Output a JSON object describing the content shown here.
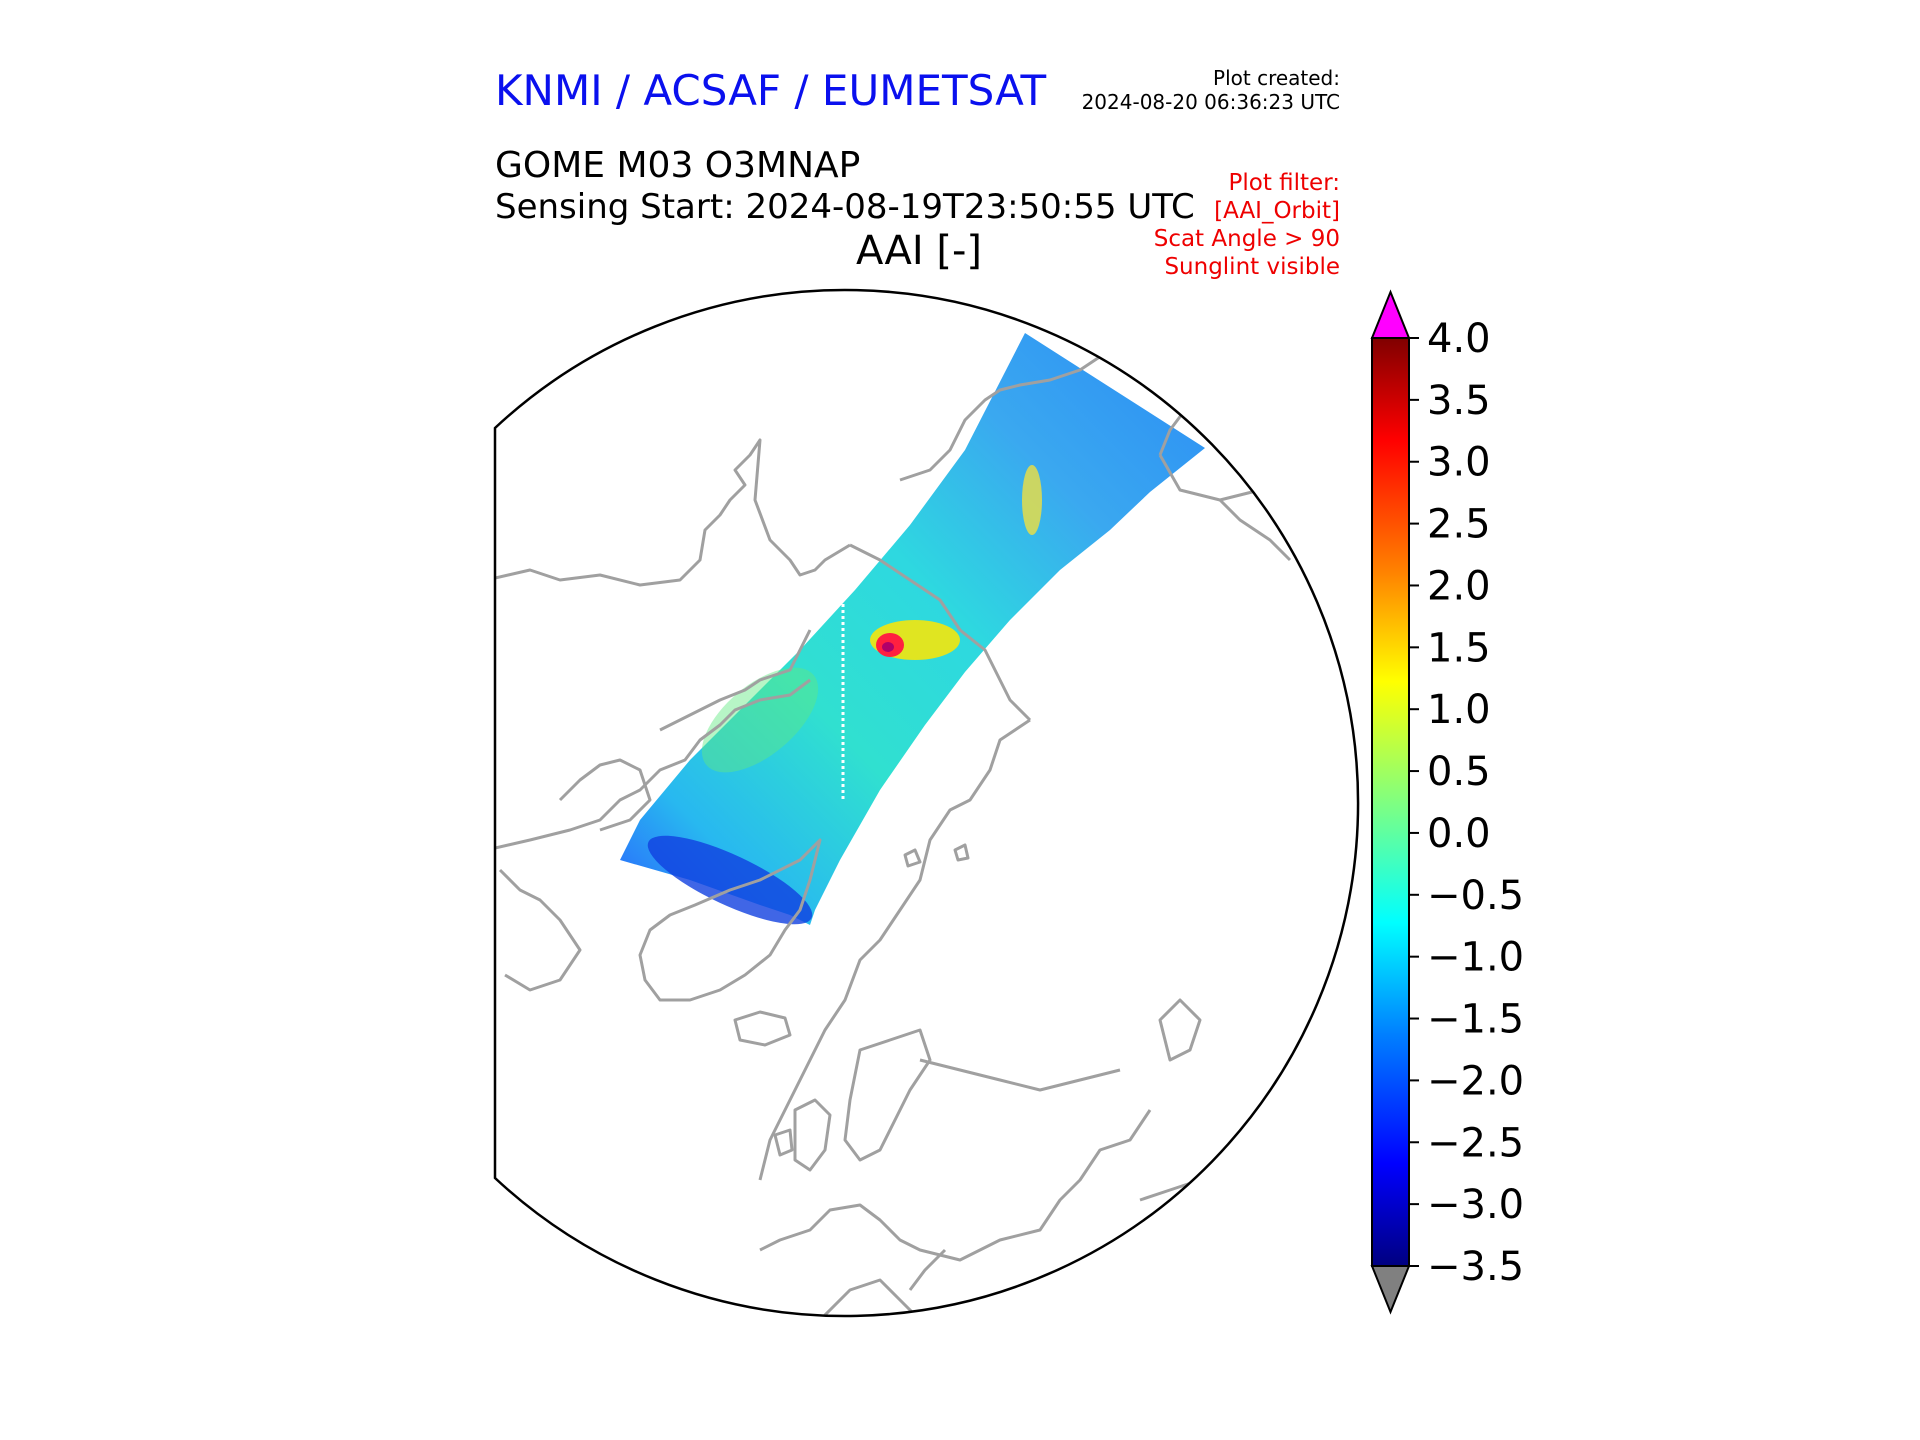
{
  "header": {
    "agency": "KNMI / ACSAF / EUMETSAT",
    "created_label": "Plot created:",
    "created_value": "2024-08-20 06:36:23 UTC",
    "product": "GOME M03 O3MNAP",
    "sensing_start": "Sensing Start: 2024-08-19T23:50:55 UTC",
    "variable": "AAI [-]"
  },
  "filters": [
    "Plot filter:",
    "[AAI_Orbit]",
    "Scat Angle > 90",
    "Sunglint visible"
  ],
  "map": {
    "projection": "north polar stereographic",
    "coastline_color": "#a0a0a0",
    "background": "#ffffff"
  },
  "colorbar": {
    "min": -3.5,
    "max": 4.0,
    "ticks": [
      4.0,
      3.5,
      3.0,
      2.5,
      2.0,
      1.5,
      1.0,
      0.5,
      0.0,
      -0.5,
      -1.0,
      -1.5,
      -2.0,
      -2.5,
      -3.0,
      -3.5
    ],
    "tick_labels": [
      "4.0",
      "3.5",
      "3.0",
      "2.5",
      "2.0",
      "1.5",
      "1.0",
      "0.5",
      "0.0",
      "−0.5",
      "−1.0",
      "−1.5",
      "−2.0",
      "−2.5",
      "−3.0",
      "−3.5"
    ],
    "over_color": "#ff00ff",
    "under_color": "#808080",
    "colormap": [
      "#800000",
      "#ff0000",
      "#ff8000",
      "#ffff00",
      "#80ff80",
      "#00ffff",
      "#0080ff",
      "#0000ff",
      "#000080"
    ]
  }
}
